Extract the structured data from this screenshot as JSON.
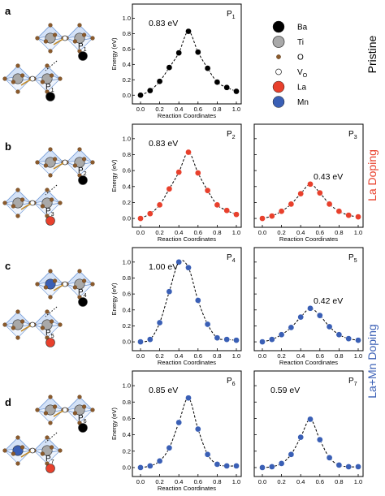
{
  "panel_labels": [
    "a",
    "b",
    "c",
    "d"
  ],
  "row_labels": [
    {
      "text": "Pristine",
      "color": "#000000"
    },
    {
      "text": "La Doping",
      "color": "#e8402c"
    },
    {
      "text": "La+Mn Doping",
      "color": "#3a5fb5"
    }
  ],
  "legend": [
    {
      "label": "Ba",
      "icon": "black-ball",
      "color": "#000000"
    },
    {
      "label": "Ti",
      "icon": "grey-ball",
      "color": "#a9a9a9"
    },
    {
      "label": "O",
      "icon": "brown-dot",
      "color": "#8b5a2b"
    },
    {
      "label": "V",
      "sub": "O",
      "icon": "vacancy-circle",
      "color": "#ffffff"
    },
    {
      "label": "La",
      "icon": "red-ball",
      "color": "#e8402c"
    },
    {
      "label": "Mn",
      "icon": "blue-ball",
      "color": "#3a5fb5"
    }
  ],
  "structures": [
    {
      "tags": [
        {
          "t": "P",
          "s": "1"
        },
        {
          "t": "P",
          "s": "1"
        }
      ]
    },
    {
      "tags": [
        {
          "t": "P",
          "s": "2"
        },
        {
          "t": "P",
          "s": "3"
        }
      ]
    },
    {
      "tags": [
        {
          "t": "P",
          "s": "4"
        },
        {
          "t": "P",
          "s": "5"
        }
      ]
    },
    {
      "tags": [
        {
          "t": "P",
          "s": "6"
        },
        {
          "t": "P",
          "s": "7"
        }
      ]
    }
  ],
  "chart_data": [
    {
      "type": "line",
      "path": "P",
      "path_sub": "1",
      "barrier": "0.83 eV",
      "color": "#000000",
      "x": [
        0.0,
        0.1,
        0.2,
        0.3,
        0.4,
        0.5,
        0.6,
        0.7,
        0.8,
        0.9,
        1.0
      ],
      "y": [
        0.0,
        0.06,
        0.18,
        0.36,
        0.55,
        0.83,
        0.56,
        0.35,
        0.17,
        0.1,
        0.05
      ],
      "xlabel": "Reaction Coordinates",
      "ylabel": "Energy (eV)",
      "ylim": [
        -0.05,
        1.1
      ],
      "xticks": [
        "0.0",
        "0.2",
        "0.4",
        "0.6",
        "0.8",
        "1.0"
      ],
      "yticks": [
        "0.0",
        "0.2",
        "0.4",
        "0.6",
        "0.8",
        "1.0"
      ]
    },
    {
      "type": "line",
      "path": "P",
      "path_sub": "2",
      "barrier": "0.83 eV",
      "color": "#e8402c",
      "x": [
        0.0,
        0.1,
        0.2,
        0.3,
        0.4,
        0.5,
        0.6,
        0.7,
        0.8,
        0.9,
        1.0
      ],
      "y": [
        0.0,
        0.06,
        0.17,
        0.37,
        0.58,
        0.83,
        0.57,
        0.35,
        0.17,
        0.1,
        0.05
      ],
      "xlabel": "Reaction Coordinates",
      "ylabel": "Energy (eV)",
      "ylim": [
        -0.05,
        1.1
      ],
      "xticks": [
        "0.0",
        "0.2",
        "0.4",
        "0.6",
        "0.8",
        "1.0"
      ],
      "yticks": [
        "0.0",
        "0.2",
        "0.4",
        "0.6",
        "0.8",
        "1.0"
      ]
    },
    {
      "type": "line",
      "path": "P",
      "path_sub": "3",
      "barrier": "0.43 eV",
      "color": "#e8402c",
      "x": [
        0.0,
        0.1,
        0.2,
        0.3,
        0.4,
        0.5,
        0.6,
        0.7,
        0.8,
        0.9,
        1.0
      ],
      "y": [
        0.0,
        0.03,
        0.09,
        0.18,
        0.31,
        0.43,
        0.32,
        0.18,
        0.09,
        0.04,
        0.02
      ],
      "xlabel": "Reaction Coordinates",
      "ylabel": "",
      "ylim": [
        -0.05,
        1.1
      ],
      "xticks": [
        "0.0",
        "0.2",
        "0.4",
        "0.6",
        "0.8",
        "1.0"
      ],
      "yticks": []
    },
    {
      "type": "line",
      "path": "P",
      "path_sub": "4",
      "barrier": "1.00 eV",
      "color": "#3a5fb5",
      "x": [
        0.0,
        0.1,
        0.2,
        0.3,
        0.4,
        0.5,
        0.6,
        0.7,
        0.8,
        0.9,
        1.0
      ],
      "y": [
        0.0,
        0.03,
        0.24,
        0.63,
        1.0,
        0.93,
        0.52,
        0.22,
        0.05,
        0.03,
        0.02
      ],
      "xlabel": "Reaction Coordinates",
      "ylabel": "Energy (eV)",
      "ylim": [
        -0.05,
        1.1
      ],
      "xticks": [
        "0.0",
        "0.2",
        "0.4",
        "0.6",
        "0.8",
        "1.0"
      ],
      "yticks": [
        "0.0",
        "0.2",
        "0.4",
        "0.6",
        "0.8",
        "1.0"
      ]
    },
    {
      "type": "line",
      "path": "P",
      "path_sub": "5",
      "barrier": "0.42 eV",
      "color": "#3a5fb5",
      "x": [
        0.0,
        0.1,
        0.2,
        0.3,
        0.4,
        0.5,
        0.6,
        0.7,
        0.8,
        0.9,
        1.0
      ],
      "y": [
        0.0,
        0.03,
        0.09,
        0.18,
        0.31,
        0.42,
        0.33,
        0.19,
        0.09,
        0.04,
        0.02
      ],
      "xlabel": "Reaction Coordinates",
      "ylabel": "",
      "ylim": [
        -0.05,
        1.1
      ],
      "xticks": [
        "0.0",
        "0.2",
        "0.4",
        "0.6",
        "0.8",
        "1.0"
      ],
      "yticks": []
    },
    {
      "type": "line",
      "path": "P",
      "path_sub": "6",
      "barrier": "0.85 eV",
      "color": "#3a5fb5",
      "x": [
        0.0,
        0.1,
        0.2,
        0.3,
        0.4,
        0.5,
        0.6,
        0.7,
        0.8,
        0.9,
        1.0
      ],
      "y": [
        0.0,
        0.02,
        0.08,
        0.24,
        0.55,
        0.85,
        0.47,
        0.16,
        0.04,
        0.02,
        0.02
      ],
      "xlabel": "Reaction Coordinates",
      "ylabel": "Energy (eV)",
      "ylim": [
        -0.05,
        1.1
      ],
      "xticks": [
        "0.0",
        "0.2",
        "0.4",
        "0.6",
        "0.8",
        "1.0"
      ],
      "yticks": [
        "0.0",
        "0.2",
        "0.4",
        "0.6",
        "0.8",
        "1.0"
      ]
    },
    {
      "type": "line",
      "path": "P",
      "path_sub": "7",
      "barrier": "0.59 eV",
      "color": "#3a5fb5",
      "x": [
        0.0,
        0.1,
        0.2,
        0.3,
        0.4,
        0.5,
        0.6,
        0.7,
        0.8,
        0.9,
        1.0
      ],
      "y": [
        0.0,
        0.01,
        0.05,
        0.16,
        0.37,
        0.59,
        0.34,
        0.12,
        0.03,
        0.01,
        0.01
      ],
      "xlabel": "",
      "ylabel": "",
      "ylim": [
        -0.05,
        1.1
      ],
      "xticks": [
        "0.0",
        "0.2",
        "0.4",
        "0.6",
        "0.8",
        "1.0"
      ],
      "yticks": []
    }
  ]
}
